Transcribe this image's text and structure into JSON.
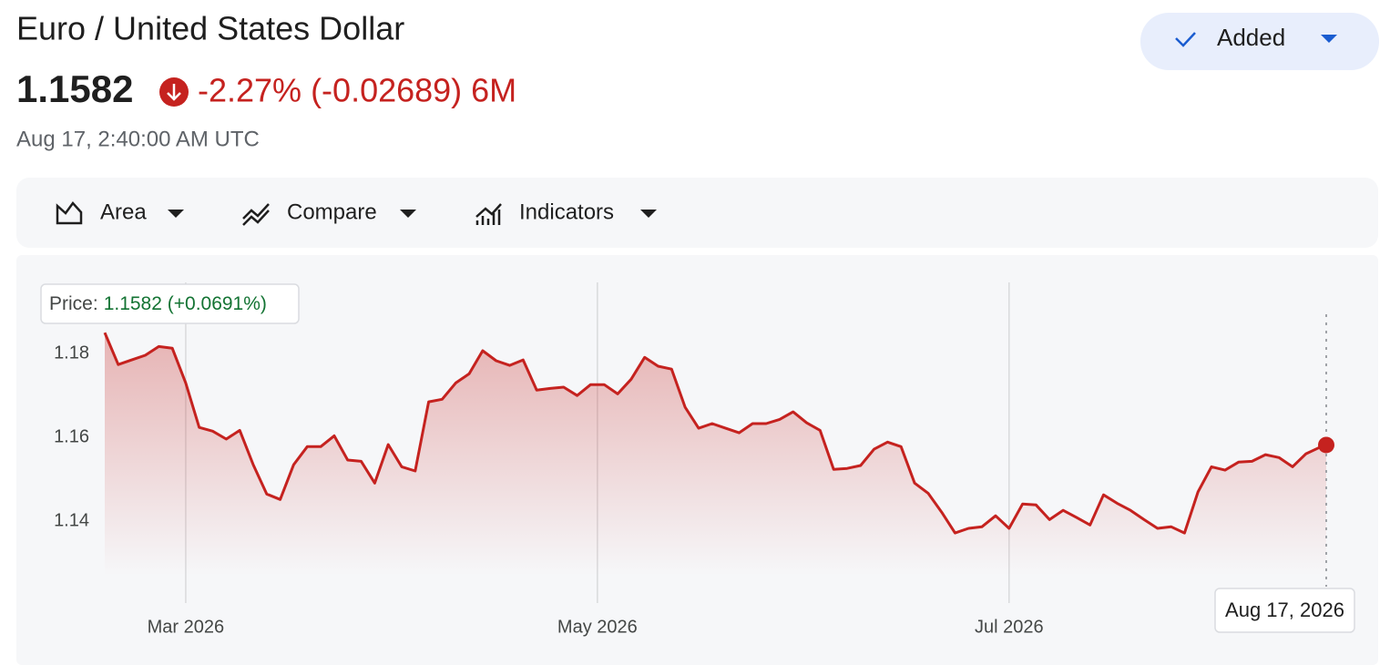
{
  "header": {
    "title": "Euro / United States Dollar",
    "price": "1.1582",
    "change": "-2.27% (-0.02689) 6M",
    "timestamp": "Aug 17, 2:40:00 AM UTC",
    "button": "Added"
  },
  "toolbar": {
    "items": [
      "Area",
      "Compare",
      "Indicators"
    ]
  },
  "chart_data": {
    "type": "area",
    "tooltip": {
      "label": "Price:",
      "value": "1.1582 (+0.0691%)"
    },
    "hover_date": "Aug 17, 2026",
    "color": "#c5221f",
    "x": [
      "2026-02-17",
      "2026-02-19",
      "2026-02-21",
      "2026-02-23",
      "2026-02-25",
      "2026-02-27",
      "2026-03-01",
      "2026-03-03",
      "2026-03-05",
      "2026-03-07",
      "2026-03-09",
      "2026-03-11",
      "2026-03-13",
      "2026-03-15",
      "2026-03-17",
      "2026-03-19",
      "2026-03-21",
      "2026-03-23",
      "2026-03-25",
      "2026-03-27",
      "2026-03-29",
      "2026-03-31",
      "2026-04-02",
      "2026-04-04",
      "2026-04-06",
      "2026-04-08",
      "2026-04-10",
      "2026-04-12",
      "2026-04-14",
      "2026-04-16",
      "2026-04-18",
      "2026-04-20",
      "2026-04-22",
      "2026-04-24",
      "2026-04-26",
      "2026-04-28",
      "2026-04-30",
      "2026-05-02",
      "2026-05-04",
      "2026-05-06",
      "2026-05-08",
      "2026-05-10",
      "2026-05-12",
      "2026-05-14",
      "2026-05-16",
      "2026-05-18",
      "2026-05-20",
      "2026-05-22",
      "2026-05-24",
      "2026-05-26",
      "2026-05-28",
      "2026-05-30",
      "2026-06-01",
      "2026-06-03",
      "2026-06-05",
      "2026-06-07",
      "2026-06-09",
      "2026-06-11",
      "2026-06-13",
      "2026-06-15",
      "2026-06-17",
      "2026-06-19",
      "2026-06-21",
      "2026-06-23",
      "2026-06-25",
      "2026-06-27",
      "2026-06-29",
      "2026-07-01",
      "2026-07-03",
      "2026-07-05",
      "2026-07-07",
      "2026-07-09",
      "2026-07-11",
      "2026-07-13",
      "2026-07-15",
      "2026-07-17",
      "2026-07-19",
      "2026-07-21",
      "2026-07-23",
      "2026-07-25",
      "2026-07-27",
      "2026-07-29",
      "2026-07-31",
      "2026-08-02",
      "2026-08-04",
      "2026-08-06",
      "2026-08-08",
      "2026-08-10",
      "2026-08-12",
      "2026-08-14",
      "2026-08-16",
      "2026-08-17"
    ],
    "values": [
      1.185,
      1.1774,
      1.1785,
      1.1796,
      1.1817,
      1.1813,
      1.173,
      1.1624,
      1.1615,
      1.1596,
      1.1617,
      1.1535,
      1.1465,
      1.1452,
      1.1535,
      1.1578,
      1.1578,
      1.1604,
      1.1546,
      1.1543,
      1.1491,
      1.1583,
      1.153,
      1.152,
      1.1685,
      1.1691,
      1.173,
      1.1752,
      1.1807,
      1.1783,
      1.1772,
      1.1785,
      1.1713,
      1.1717,
      1.172,
      1.17,
      1.1726,
      1.1726,
      1.1704,
      1.1739,
      1.1791,
      1.177,
      1.1763,
      1.1672,
      1.1622,
      1.1633,
      1.1622,
      1.1611,
      1.1633,
      1.1633,
      1.1643,
      1.1661,
      1.1635,
      1.1617,
      1.1524,
      1.1526,
      1.1533,
      1.1572,
      1.1589,
      1.1578,
      1.1491,
      1.1467,
      1.1422,
      1.1372,
      1.1383,
      1.1387,
      1.1413,
      1.1383,
      1.1441,
      1.1439,
      1.1404,
      1.1426,
      1.1409,
      1.1391,
      1.1463,
      1.1443,
      1.1426,
      1.1404,
      1.1383,
      1.1387,
      1.1372,
      1.147,
      1.153,
      1.1522,
      1.1541,
      1.1543,
      1.1559,
      1.1552,
      1.153,
      1.1561,
      1.1576,
      1.1582
    ],
    "xlim": [
      "2026-02-17",
      "2026-08-17"
    ],
    "xticks": [
      {
        "value": "2026-03-01",
        "label": "Mar 2026"
      },
      {
        "value": "2026-05-01",
        "label": "May 2026"
      },
      {
        "value": "2026-07-01",
        "label": "Jul 2026"
      }
    ],
    "ylim": [
      1.127,
      1.197
    ],
    "yticks": [
      1.14,
      1.16,
      1.18
    ],
    "grid": true
  }
}
